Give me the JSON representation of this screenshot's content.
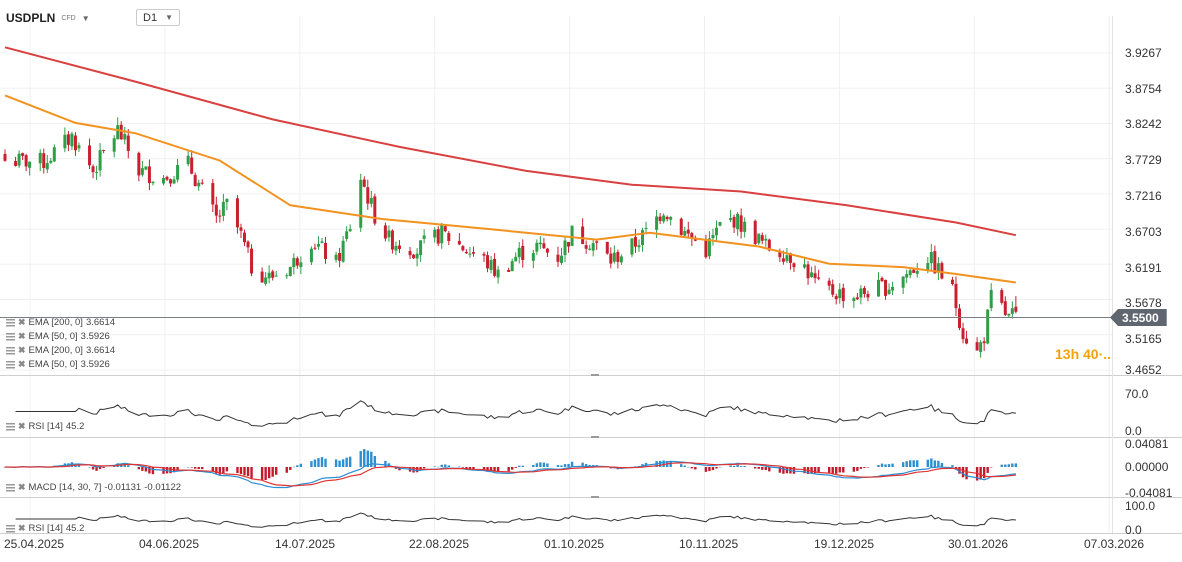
{
  "header": {
    "symbol": "USDPLN",
    "instrument_type": "CFD",
    "timeframe": "D1"
  },
  "current_price": "3.5500",
  "countdown": "13h 40·..",
  "price_axis": [
    "3.9267",
    "3.8754",
    "3.8242",
    "3.7729",
    "3.7216",
    "3.6703",
    "3.6191",
    "3.5678",
    "3.5165",
    "3.4652"
  ],
  "date_axis": [
    "25.04.2025",
    "04.06.2025",
    "14.07.2025",
    "22.08.2025",
    "01.10.2025",
    "10.11.2025",
    "19.12.2025",
    "30.01.2026",
    "07.03.2026"
  ],
  "indicators": [
    {
      "label": "EMA [200, 0]",
      "value": "3.6614"
    },
    {
      "label": "EMA [50, 0]",
      "value": "3.5926"
    },
    {
      "label": "EMA [200, 0]",
      "value": "3.6614"
    },
    {
      "label": "EMA [50, 0]",
      "value": "3.5926"
    }
  ],
  "rsi1": {
    "label": "RSI [14]",
    "value": "45.2",
    "axis": [
      "70.0",
      "0.0"
    ]
  },
  "macd": {
    "label": "MACD [14, 30, 7]",
    "value1": "-0.01131",
    "value2": "-0.01122",
    "axis": [
      "0.04081",
      "0.00000",
      "-0.04081"
    ]
  },
  "rsi2": {
    "label": "RSI [14]",
    "value": "45.2",
    "axis": [
      "100.0",
      "0.0"
    ]
  },
  "colors": {
    "bull": "#2e9e47",
    "bear": "#c8202f",
    "ema200": "#d94040",
    "ema50": "#f2921f",
    "macd_pos": "#2c8fd0",
    "macd_neg": "#c21b2b",
    "macd_line": "#2b8fd3",
    "signal_line": "#e03434",
    "rsi_line": "#333333"
  },
  "chart_data": {
    "type": "candlestick",
    "timeframe": "D1",
    "x_start": "2025-04-25",
    "x_end": "2026-03-07",
    "last_bar": "2026-02-06",
    "ylim": [
      3.4652,
      3.9267
    ],
    "close_path": [
      [
        "2025-04-25",
        3.77
      ],
      [
        "2025-05-06",
        3.768
      ],
      [
        "2025-05-14",
        3.805
      ],
      [
        "2025-05-20",
        3.755
      ],
      [
        "2025-05-27",
        3.815
      ],
      [
        "2025-06-02",
        3.755
      ],
      [
        "2025-06-09",
        3.745
      ],
      [
        "2025-06-16",
        3.765
      ],
      [
        "2025-06-19",
        3.735
      ],
      [
        "2025-06-24",
        3.685
      ],
      [
        "2025-06-27",
        3.705
      ],
      [
        "2025-07-01",
        3.66
      ],
      [
        "2025-07-04",
        3.615
      ],
      [
        "2025-07-09",
        3.6
      ],
      [
        "2025-07-15",
        3.615
      ],
      [
        "2025-07-21",
        3.655
      ],
      [
        "2025-07-28",
        3.62
      ],
      [
        "2025-08-01",
        3.675
      ],
      [
        "2025-08-04",
        3.745
      ],
      [
        "2025-08-08",
        3.69
      ],
      [
        "2025-08-12",
        3.655
      ],
      [
        "2025-08-20",
        3.64
      ],
      [
        "2025-08-27",
        3.665
      ],
      [
        "2025-09-03",
        3.64
      ],
      [
        "2025-09-08",
        3.625
      ],
      [
        "2025-09-12",
        3.605
      ],
      [
        "2025-09-18",
        3.635
      ],
      [
        "2025-09-23",
        3.645
      ],
      [
        "2025-09-29",
        3.63
      ],
      [
        "2025-10-03",
        3.665
      ],
      [
        "2025-10-09",
        3.65
      ],
      [
        "2025-10-14",
        3.625
      ],
      [
        "2025-10-20",
        3.645
      ],
      [
        "2025-10-24",
        3.665
      ],
      [
        "2025-10-29",
        3.7
      ],
      [
        "2025-11-04",
        3.665
      ],
      [
        "2025-11-10",
        3.64
      ],
      [
        "2025-11-14",
        3.675
      ],
      [
        "2025-11-18",
        3.685
      ],
      [
        "2025-11-24",
        3.66
      ],
      [
        "2025-11-27",
        3.645
      ],
      [
        "2025-12-03",
        3.635
      ],
      [
        "2025-12-08",
        3.615
      ],
      [
        "2025-12-12",
        3.585
      ],
      [
        "2025-12-17",
        3.578
      ],
      [
        "2025-12-22",
        3.572
      ],
      [
        "2025-12-26",
        3.58
      ],
      [
        "2026-01-01",
        3.588
      ],
      [
        "2026-01-06",
        3.605
      ],
      [
        "2026-01-12",
        3.63
      ],
      [
        "2026-01-15",
        3.61
      ],
      [
        "2026-01-19",
        3.58
      ],
      [
        "2026-01-22",
        3.52
      ],
      [
        "2026-01-26",
        3.49
      ],
      [
        "2026-01-28",
        3.515
      ],
      [
        "2026-01-30",
        3.57
      ],
      [
        "2026-02-02",
        3.555
      ],
      [
        "2026-02-04",
        3.54
      ],
      [
        "2026-02-06",
        3.55
      ]
    ],
    "series": [
      {
        "name": "EMA [200, 0]",
        "points": [
          [
            "2025-04-25",
            3.935
          ],
          [
            "2025-06-01",
            3.885
          ],
          [
            "2025-07-10",
            3.83
          ],
          [
            "2025-08-15",
            3.79
          ],
          [
            "2025-09-20",
            3.755
          ],
          [
            "2025-10-20",
            3.735
          ],
          [
            "2025-11-20",
            3.725
          ],
          [
            "2025-12-20",
            3.705
          ],
          [
            "2026-01-20",
            3.68
          ],
          [
            "2026-02-06",
            3.6614
          ]
        ]
      },
      {
        "name": "EMA [50, 0]",
        "points": [
          [
            "2025-04-25",
            3.865
          ],
          [
            "2025-05-15",
            3.825
          ],
          [
            "2025-06-01",
            3.81
          ],
          [
            "2025-06-25",
            3.77
          ],
          [
            "2025-07-15",
            3.705
          ],
          [
            "2025-08-10",
            3.685
          ],
          [
            "2025-09-10",
            3.67
          ],
          [
            "2025-10-10",
            3.655
          ],
          [
            "2025-10-25",
            3.665
          ],
          [
            "2025-11-25",
            3.645
          ],
          [
            "2025-12-15",
            3.62
          ],
          [
            "2026-01-05",
            3.615
          ],
          [
            "2026-01-20",
            3.605
          ],
          [
            "2026-02-06",
            3.5926
          ]
        ]
      }
    ]
  }
}
